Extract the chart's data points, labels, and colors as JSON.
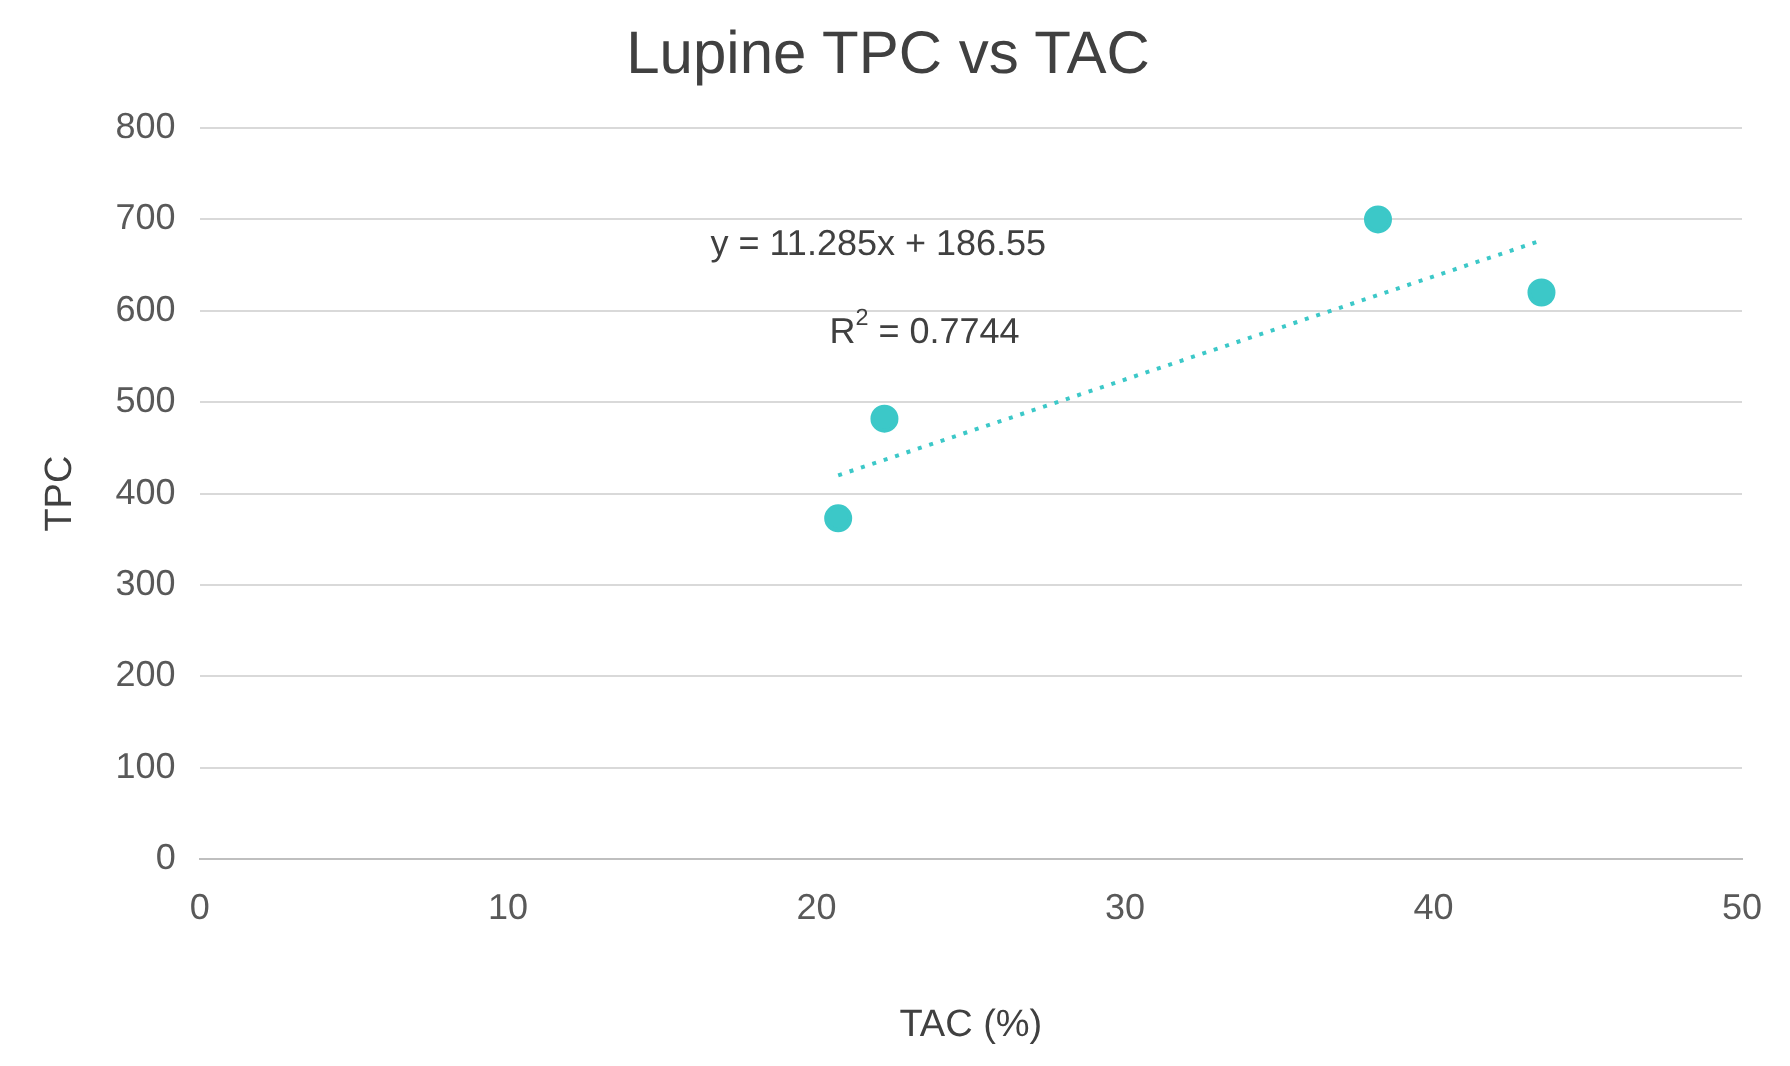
{
  "chart_data": {
    "type": "scatter",
    "title": "Lupine TPC vs TAC",
    "xlabel": "TAC (%)",
    "ylabel": "TPC",
    "xlim": [
      0,
      50
    ],
    "xticks": [
      0,
      10,
      20,
      30,
      40,
      50
    ],
    "ylim": [
      0,
      800
    ],
    "yticks": [
      0,
      100,
      200,
      300,
      400,
      500,
      600,
      700,
      800
    ],
    "grid": "y",
    "legend": false,
    "marker": "circle",
    "annotations": [
      "y = 11.285x + 186.55",
      "R$^{2}$ = 0.7744"
    ],
    "series": [
      {
        "x": [
          20.7,
          22.2,
          38.2,
          43.5
        ],
        "values": [
          373,
          482,
          700,
          620
        ],
        "color": "#3cc8c8"
      },
      {
        "type": "line",
        "x": [
          20.7,
          43.5
        ],
        "values": [
          420,
          677
        ],
        "color": "#3cc8c8",
        "line_style": "dotted",
        "marker": "none"
      }
    ]
  }
}
